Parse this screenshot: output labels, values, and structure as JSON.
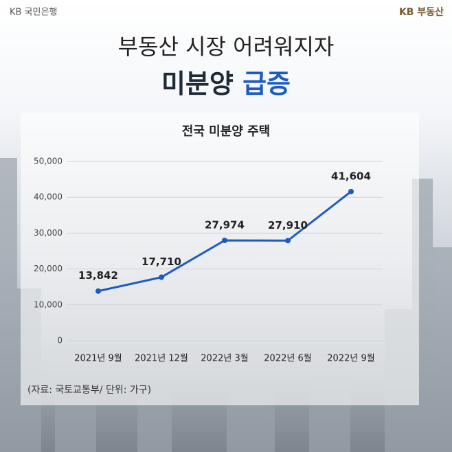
{
  "header": {
    "left_logo": "KB 국민은행",
    "right_logo": "KB 부동산",
    "title": "부동산 시장 어려워지자",
    "headline_dark": "미분양",
    "headline_blue": "급증"
  },
  "chart_data": {
    "type": "line",
    "title": "전국 미분양 주택",
    "categories": [
      "2021년 9월",
      "2021년 12월",
      "2022년 3월",
      "2022년 6월",
      "2022년 9월"
    ],
    "values": [
      13842,
      17710,
      27974,
      27910,
      41604
    ],
    "value_labels": [
      "13,842",
      "17,710",
      "27,974",
      "27,910",
      "41,604"
    ],
    "color": "#1d5bbf",
    "ylim": [
      0,
      50000
    ],
    "yticks": [
      0,
      {
        "value": 10000,
        "label": "10,000"
      },
      {
        "value": 20000,
        "label": "20,000"
      },
      {
        "value": 30000,
        "label": "30,000"
      },
      {
        "value": 40000,
        "label": "40,000"
      },
      {
        "value": 50000,
        "label": "50,000"
      }
    ],
    "grid": true,
    "source": "(자료: 국토교통부/ 단위: 가구)"
  }
}
